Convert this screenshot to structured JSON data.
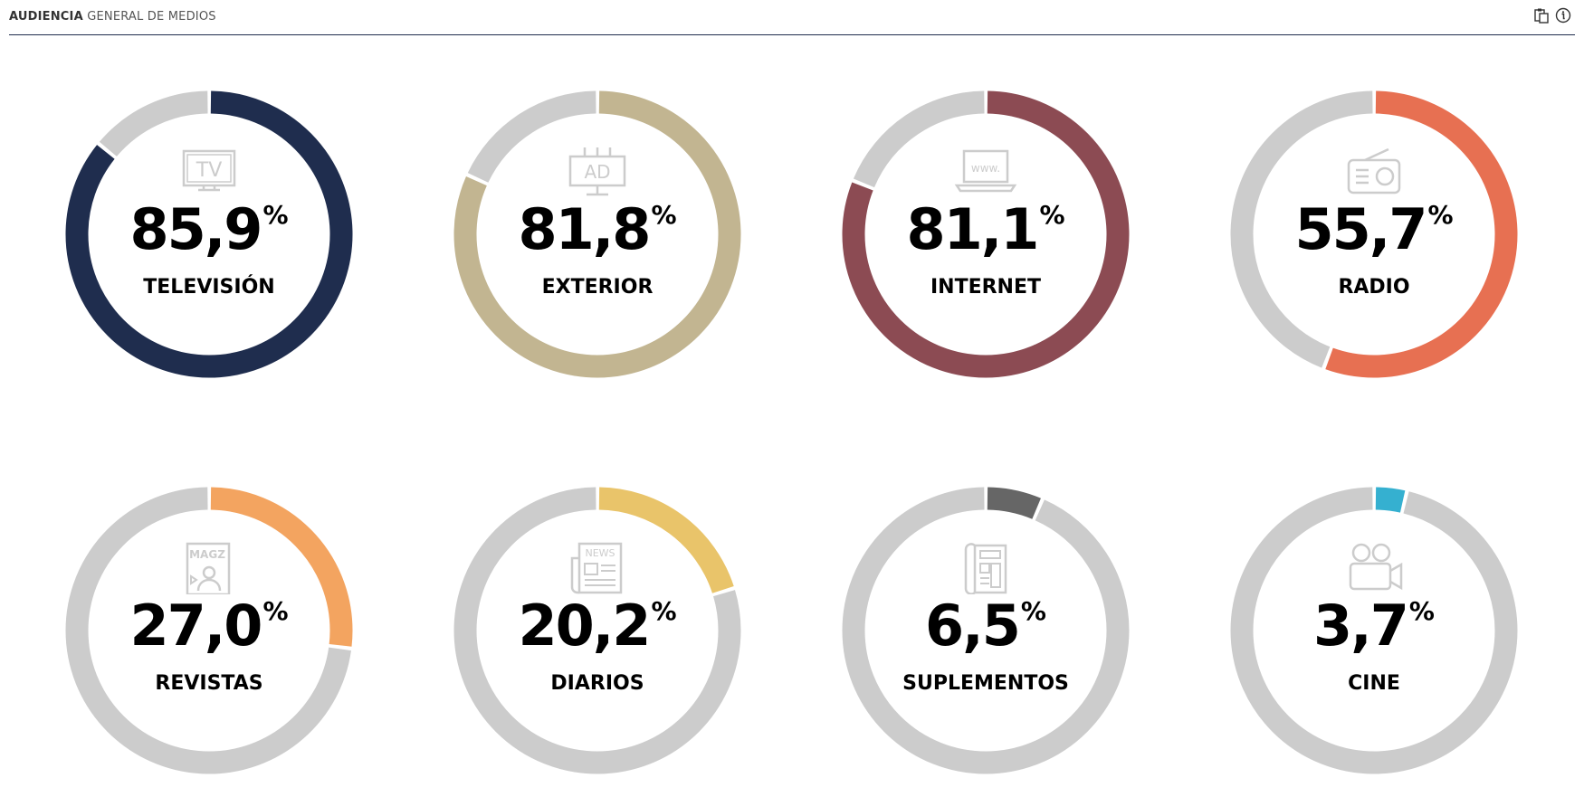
{
  "header": {
    "title_bold": "AUDIENCIA",
    "title_rest": "GENERAL DE MEDIOS",
    "icons": [
      "clipboard-icon",
      "info-icon"
    ],
    "accent": "#1f2d4e"
  },
  "chart_data": {
    "type": "donut",
    "track_color": "#cccccc",
    "unit": "%",
    "items": [
      {
        "label": "TELEVISIÓN",
        "value": 85.9,
        "display": "85,9",
        "color": "#1f2d4e",
        "icon": "tv-icon"
      },
      {
        "label": "EXTERIOR",
        "value": 81.8,
        "display": "81,8",
        "color": "#c2b591",
        "icon": "billboard-icon"
      },
      {
        "label": "INTERNET",
        "value": 81.1,
        "display": "81,1",
        "color": "#8c4b53",
        "icon": "laptop-www-icon"
      },
      {
        "label": "RADIO",
        "value": 55.7,
        "display": "55,7",
        "color": "#e77052",
        "icon": "radio-icon"
      },
      {
        "label": "REVISTAS",
        "value": 27.0,
        "display": "27,0",
        "color": "#f3a460",
        "icon": "magazine-icon"
      },
      {
        "label": "DIARIOS",
        "value": 20.2,
        "display": "20,2",
        "color": "#e9c46a",
        "icon": "newspaper-icon"
      },
      {
        "label": "SUPLEMENTOS",
        "value": 6.5,
        "display": "6,5",
        "color": "#666666",
        "icon": "supplement-icon"
      },
      {
        "label": "CINE",
        "value": 3.7,
        "display": "3,7",
        "color": "#35b0d0",
        "icon": "movie-camera-icon"
      }
    ]
  }
}
